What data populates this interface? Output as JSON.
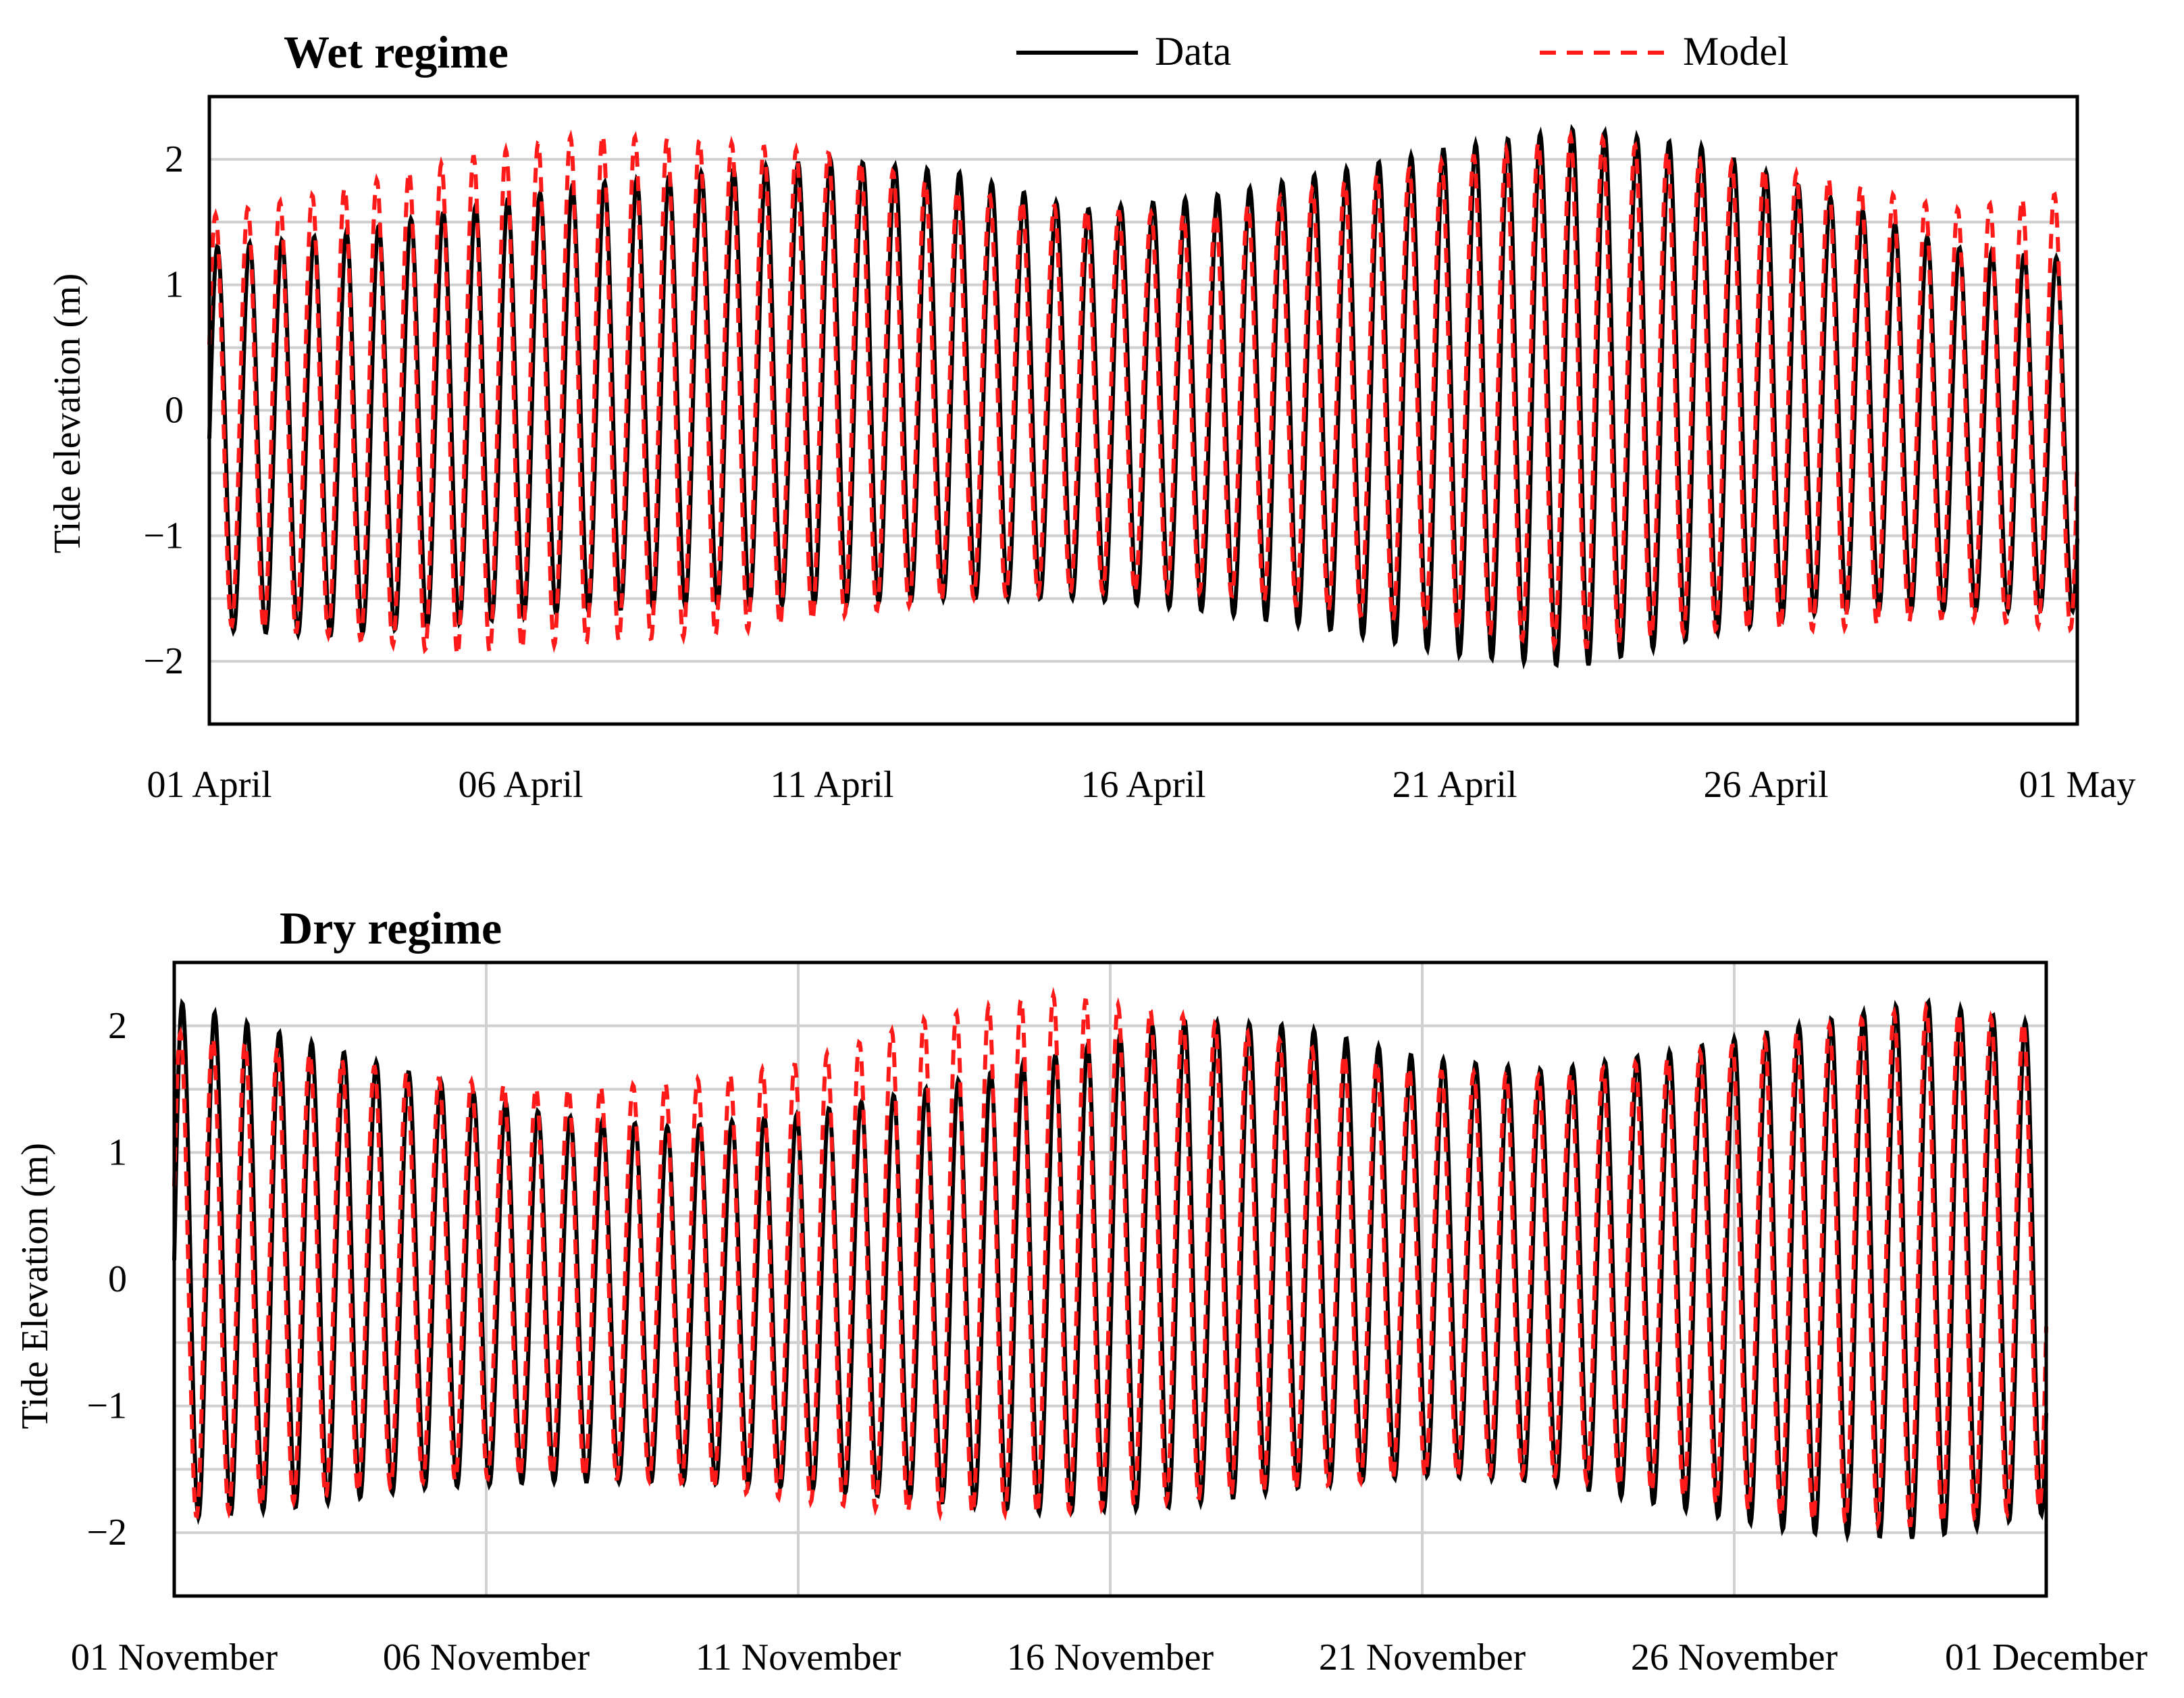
{
  "legend": [
    {
      "name": "Data",
      "color": "#000000",
      "style": "solid"
    },
    {
      "name": "Model",
      "color": "#ff1a1a",
      "style": "dashed"
    }
  ],
  "chart_data": [
    {
      "type": "line",
      "title": "Wet regime",
      "xlabel": "",
      "ylabel": "Tide elevation (m)",
      "ylim": [
        -2.5,
        2.5
      ],
      "yticks": [
        -2,
        -1,
        0,
        1,
        2
      ],
      "ytick_labels": [
        "−2",
        "−1",
        "0",
        "1",
        "2"
      ],
      "minor_gridlines_y": [
        -1.5,
        -0.5,
        0.5,
        1.5
      ],
      "vertical_gridlines": false,
      "xlim_days": [
        0,
        30
      ],
      "xticks_days": [
        0,
        5,
        10,
        15,
        20,
        25,
        30
      ],
      "xtick_labels": [
        "01 April",
        "06 April",
        "11 April",
        "16 April",
        "21 April",
        "26 April",
        "01 May"
      ],
      "tidal_cycles_per_day": 1.93,
      "series": [
        {
          "name": "Data",
          "envelope_days": [
            0,
            2,
            4,
            6,
            8,
            10,
            12,
            14,
            16,
            18,
            20,
            22,
            24,
            26,
            28,
            30
          ],
          "envelope_high": [
            1.3,
            1.4,
            1.6,
            1.8,
            1.9,
            2.0,
            1.9,
            1.6,
            1.7,
            1.9,
            2.1,
            2.25,
            2.1,
            1.7,
            1.3,
            1.2
          ],
          "envelope_low": [
            -1.75,
            -1.8,
            -1.7,
            -1.6,
            -1.55,
            -1.55,
            -1.5,
            -1.5,
            -1.6,
            -1.75,
            -1.95,
            -2.05,
            -1.8,
            -1.6,
            -1.6,
            -1.6
          ]
        },
        {
          "name": "Model",
          "envelope_days": [
            0,
            2,
            4,
            6,
            8,
            10,
            12,
            14,
            16,
            18,
            20,
            22,
            24,
            26,
            28,
            30
          ],
          "envelope_high": [
            1.55,
            1.75,
            2.0,
            2.2,
            2.15,
            2.05,
            1.75,
            1.6,
            1.55,
            1.8,
            2.0,
            2.2,
            2.0,
            1.85,
            1.6,
            1.75
          ],
          "envelope_low": [
            -1.7,
            -1.8,
            -1.95,
            -1.85,
            -1.8,
            -1.65,
            -1.5,
            -1.45,
            -1.45,
            -1.6,
            -1.75,
            -1.9,
            -1.75,
            -1.75,
            -1.65,
            -1.75
          ]
        }
      ]
    },
    {
      "type": "line",
      "title": "Dry regime",
      "xlabel": "",
      "ylabel": "Tide Elevation (m)",
      "ylim": [
        -2.5,
        2.5
      ],
      "yticks": [
        -2,
        -1,
        0,
        1,
        2
      ],
      "ytick_labels": [
        "−2",
        "−1",
        "0",
        "1",
        "2"
      ],
      "minor_gridlines_y": [
        -1.5,
        -0.5,
        0.5,
        1.5
      ],
      "vertical_gridlines": true,
      "xlim_days": [
        0,
        30
      ],
      "xticks_days": [
        0,
        5,
        10,
        15,
        20,
        25,
        30
      ],
      "xtick_labels": [
        "01 November",
        "06 November",
        "11 November",
        "16 November",
        "21 November",
        "26 November",
        "01 December"
      ],
      "tidal_cycles_per_day": 1.93,
      "series": [
        {
          "name": "Data",
          "envelope_days": [
            0,
            2,
            4,
            6,
            8,
            10,
            12,
            14,
            16,
            18,
            20,
            22,
            24,
            26,
            28,
            30
          ],
          "envelope_high": [
            2.2,
            1.9,
            1.6,
            1.3,
            1.2,
            1.3,
            1.5,
            1.75,
            2.05,
            2.0,
            1.75,
            1.65,
            1.8,
            2.0,
            2.2,
            2.0
          ],
          "envelope_low": [
            -1.9,
            -1.8,
            -1.65,
            -1.6,
            -1.6,
            -1.65,
            -1.75,
            -1.85,
            -1.8,
            -1.65,
            -1.55,
            -1.6,
            -1.8,
            -2.0,
            -2.05,
            -1.85
          ]
        },
        {
          "name": "Model",
          "envelope_days": [
            0,
            2,
            4,
            6,
            8,
            10,
            12,
            14,
            16,
            18,
            20,
            22,
            24,
            26,
            28,
            30
          ],
          "envelope_high": [
            1.95,
            1.8,
            1.6,
            1.5,
            1.55,
            1.7,
            2.05,
            2.25,
            2.1,
            1.85,
            1.65,
            1.6,
            1.75,
            1.95,
            2.15,
            2.0
          ],
          "envelope_low": [
            -1.9,
            -1.75,
            -1.6,
            -1.55,
            -1.6,
            -1.75,
            -1.85,
            -1.85,
            -1.75,
            -1.65,
            -1.55,
            -1.55,
            -1.7,
            -1.9,
            -1.95,
            -1.8
          ]
        }
      ]
    }
  ]
}
